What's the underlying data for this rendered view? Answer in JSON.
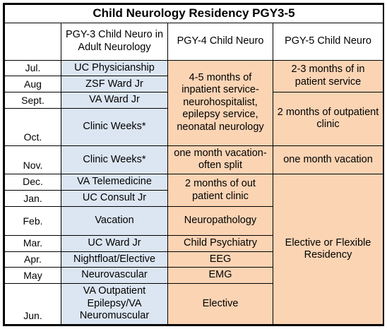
{
  "title": "Child Neurology Residency PGY3-5",
  "columns": {
    "pgy3": "PGY-3 Child Neuro in Adult Neurology",
    "pgy4": "PGY-4 Child Neuro",
    "pgy5": "PGY-5 Child Neuro"
  },
  "months": [
    "Jul.",
    "Aug",
    "Sept.",
    "Oct.",
    "Nov.",
    "Dec.",
    "Jan.",
    "Feb.",
    "Mar.",
    "Apr.",
    "May",
    "Jun."
  ],
  "pgy3_rotations": [
    "UC Physicianship",
    "ZSF Ward Jr",
    "VA Ward Jr",
    "Clinic Weeks*",
    "Clinic Weeks*",
    "VA Telemedicine",
    "UC Consult Jr",
    "Vacation",
    "UC Ward Jr",
    "Nightfloat/Elective",
    "Neurovascular",
    "VA Outpatient Epilepsy/VA Neuromuscular"
  ],
  "pgy4_blocks": [
    "4-5 months of inpatient service-neurohospitalist, epilepsy service, neonatal neurology",
    "one month vacation-often split",
    "2 months of out patient clinic",
    "Neuropathology",
    "Child Psychiatry",
    "EEG",
    "EMG",
    "Elective"
  ],
  "pgy5_blocks": [
    "2-3 months of in patient service",
    "2 months of outpatient clinic",
    "one month vacation",
    "Elective or Flexible Residency"
  ],
  "colors": {
    "pgy3_fill": "#dce6f2",
    "rotation_fill": "#fbd4b4",
    "grid": "#000000"
  }
}
